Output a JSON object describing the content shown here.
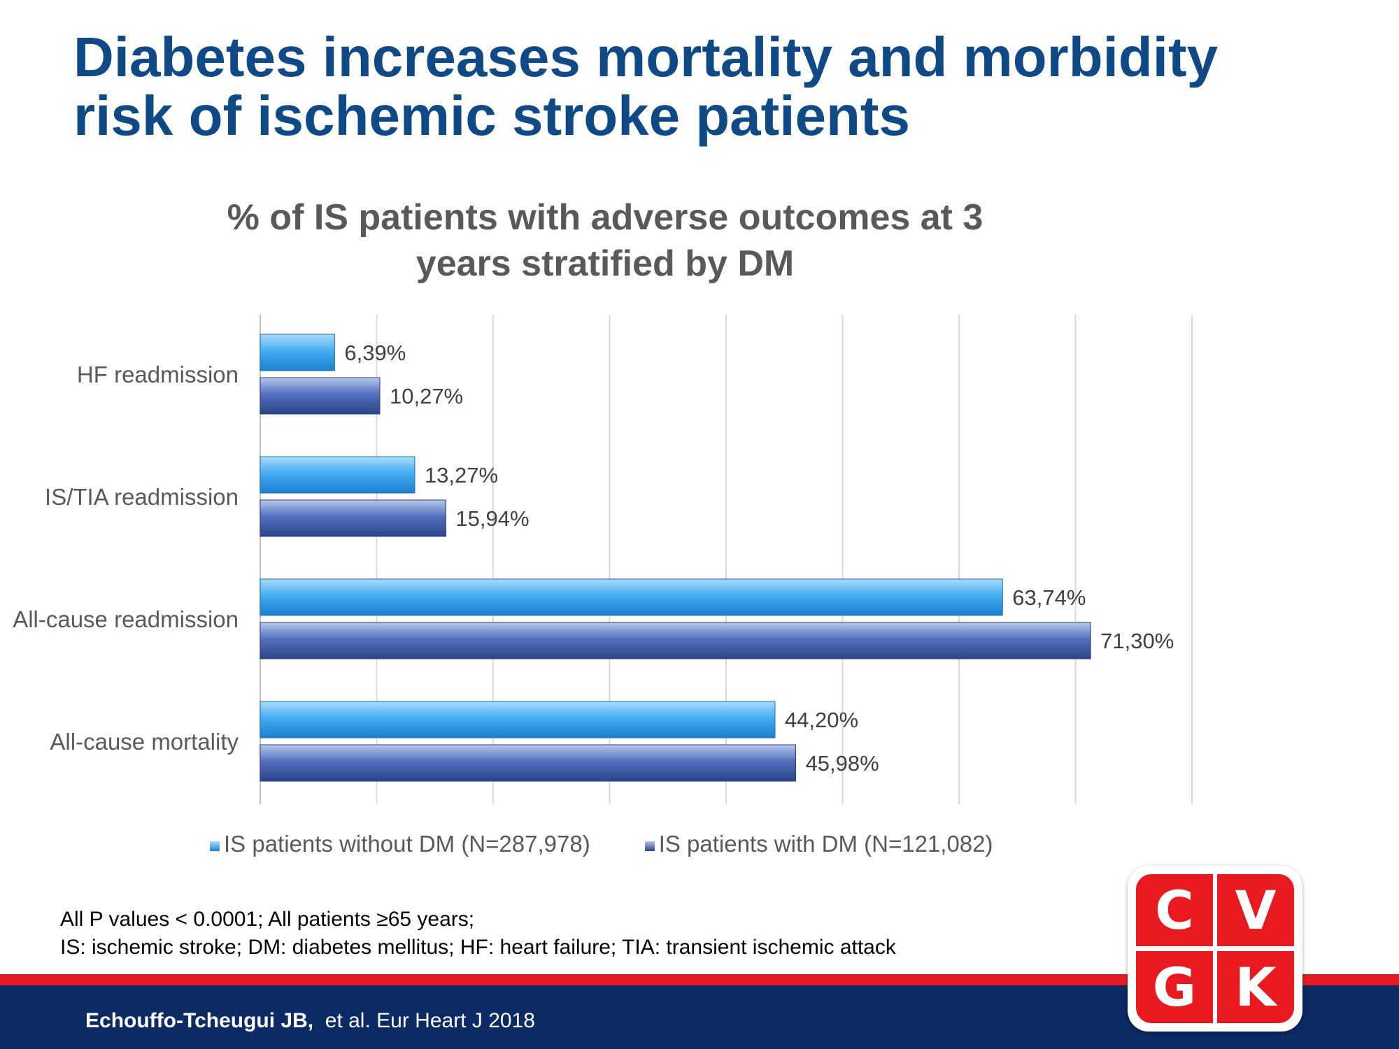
{
  "slide_title": {
    "line1": "Diabetes increases mortality and morbidity",
    "line2": "risk of ischemic stroke patients"
  },
  "chart_data": {
    "type": "bar",
    "orientation": "horizontal",
    "title_lines": [
      "% of IS patients with adverse outcomes at 3",
      "years stratified by DM"
    ],
    "categories": [
      "HF readmission",
      "IS/TIA readmission",
      "All-cause readmission",
      "All-cause mortality"
    ],
    "series": [
      {
        "name": "IS patients without DM (N=287,978)",
        "color": "#39a2e8",
        "values": [
          6.39,
          13.27,
          63.74,
          44.2
        ],
        "labels": [
          "6,39%",
          "13,27%",
          "63,74%",
          "44,20%"
        ]
      },
      {
        "name": "IS patients with DM (N=121,082)",
        "color": "#3f5da8",
        "values": [
          10.27,
          15.94,
          71.3,
          45.98
        ],
        "labels": [
          "10,27%",
          "15,94%",
          "71,30%",
          "45,98%"
        ]
      }
    ],
    "xlim": [
      0,
      80
    ],
    "x_gridlines": true,
    "x_tick_labels_visible": false,
    "legend_position": "bottom"
  },
  "footnote": {
    "line1": "All P values  < 0.0001; All patients ≥65 years;",
    "line2": "IS: ischemic stroke; DM: diabetes mellitus;  HF: heart failure; TIA:  transient  ischemic attack"
  },
  "citation": {
    "authors": "Echouffo-Tcheugui JB,",
    "rest": "et al. Eur Heart J 2018"
  },
  "logo": {
    "letters": [
      "C",
      "V",
      "G",
      "K"
    ],
    "color": "#e8191f"
  },
  "colors": {
    "title": "#0f4a86",
    "footer_red": "#e31b23",
    "footer_blue": "#0c2a63"
  }
}
